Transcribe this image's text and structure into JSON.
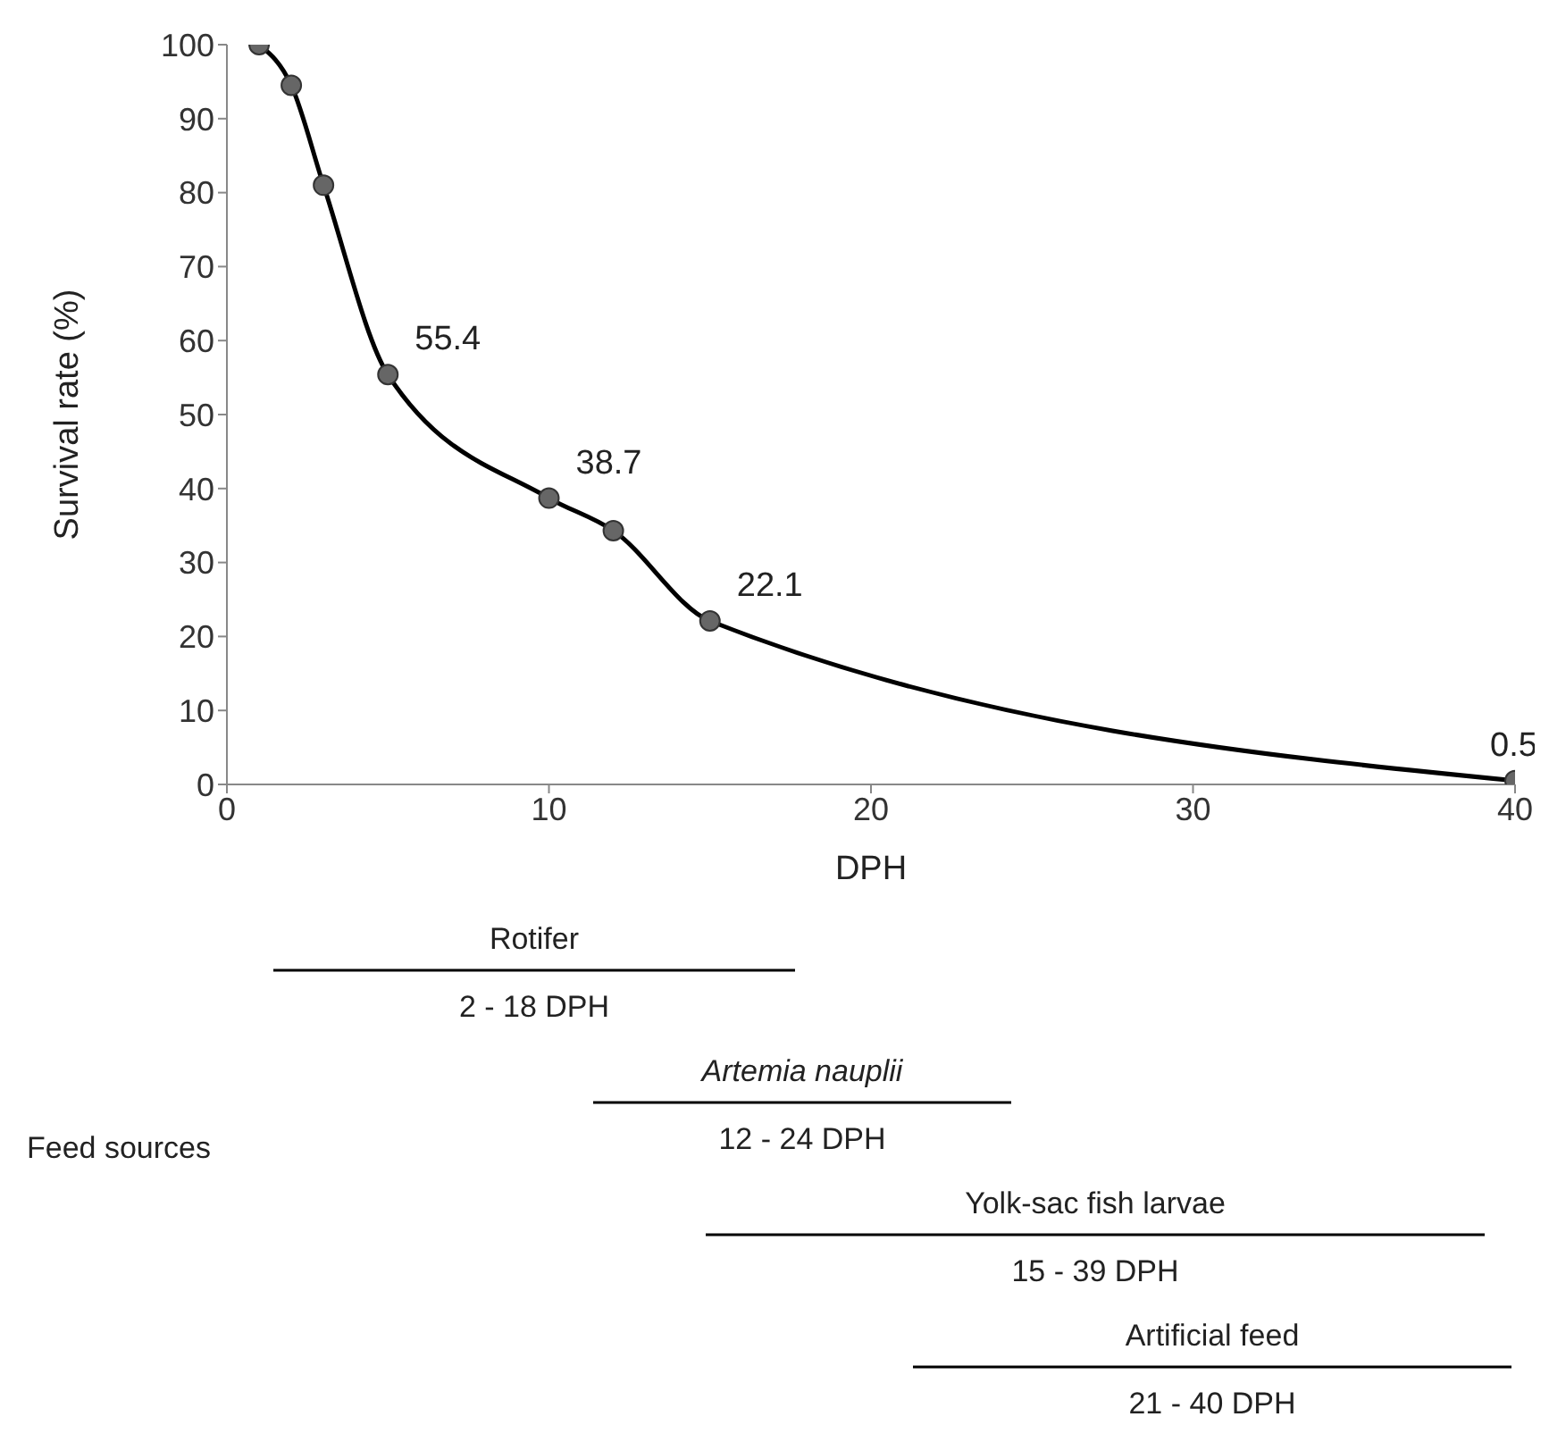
{
  "chart_data": {
    "type": "line",
    "xlabel": "DPH",
    "ylabel": "Survival rate (%)",
    "x": [
      1,
      2,
      3,
      5,
      10,
      12,
      15,
      40
    ],
    "series": [
      {
        "color": "#000000",
        "values": [
          100,
          94.5,
          81,
          55.4,
          38.7,
          34.3,
          22.1,
          0.5
        ],
        "value_labels": [
          null,
          null,
          null,
          "55.4",
          "38.7",
          null,
          "22.1",
          "0.5"
        ]
      }
    ],
    "xlim": [
      0,
      40
    ],
    "xticks": [
      0,
      10,
      20,
      30,
      40
    ],
    "ylim": [
      0,
      100
    ],
    "yticks": [
      0,
      10,
      20,
      30,
      40,
      50,
      60,
      70,
      80,
      90,
      100
    ],
    "grid": false,
    "legend": false,
    "marker": "circle",
    "line_style": "solid",
    "annotations": [
      "Feed sources",
      "Rotifer",
      "2 - 18 DPH",
      "Artemia nauplii",
      "12 - 24 DPH",
      "Yolk-sac fish larvae",
      "15 - 39 DPH",
      "Artificial feed",
      "21 - 40 DPH"
    ]
  }
}
